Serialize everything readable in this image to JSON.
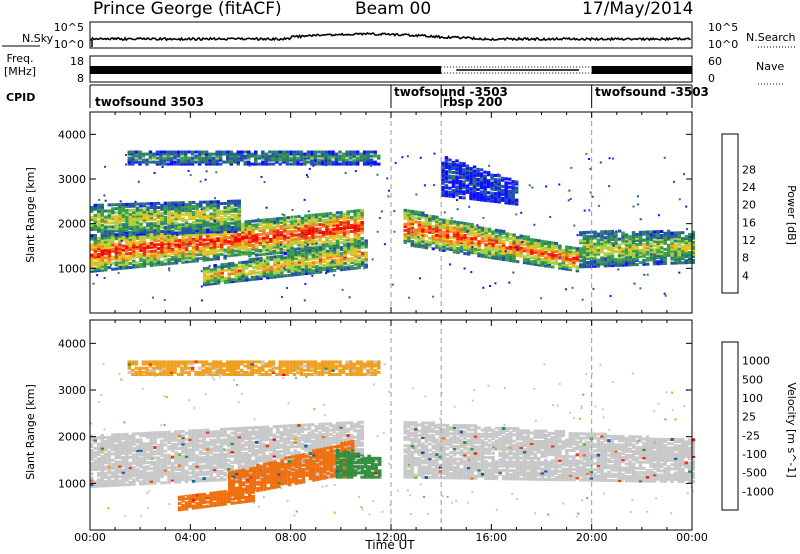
{
  "header": {
    "station": "Prince George (fitACF)",
    "beam": "Beam 00",
    "date": "17/May/2014"
  },
  "left_labels": {
    "nsky": "N.Sky",
    "freq_line1": "Freq.",
    "freq_line2": "[MHz]",
    "cpid": "CPID"
  },
  "right_labels": {
    "nsearch": "N.Search",
    "nave": "Nave"
  },
  "noise_panel": {
    "left_ticks": [
      "10^5",
      "10^0"
    ],
    "right_ticks": [
      "10^5",
      "10^0"
    ]
  },
  "freq_panel": {
    "left_ticks": [
      "18",
      "8"
    ],
    "right_ticks": [
      "60",
      "0"
    ]
  },
  "cpid_segments": [
    {
      "label": "twofsound 3503",
      "start": "00:00"
    },
    {
      "label": "twofsound -3503",
      "start": "12:00"
    },
    {
      "label": "rbsp 200",
      "start": "14:00"
    },
    {
      "label": "twofsound -3503",
      "start": "20:00"
    }
  ],
  "xaxis": {
    "label": "Time UT",
    "ticks": [
      "00:00",
      "04:00",
      "08:00",
      "12:00",
      "16:00",
      "20:00",
      "00:00"
    ]
  },
  "colors": {
    "power_scale": [
      "#1010ff",
      "#2050b0",
      "#2f7a68",
      "#3aa04a",
      "#a8d040",
      "#f0c020",
      "#f08020",
      "#e83010",
      "#ff0000"
    ],
    "velocity_scale": [
      "#ff0000",
      "#e84010",
      "#f07010",
      "#f0a020",
      "#c8c8c8",
      "#60c040",
      "#309040",
      "#2060a0",
      "#1030c0"
    ]
  },
  "chart_data": [
    {
      "type": "heatmap",
      "name": "power",
      "ylabel": "Slant Range [km]",
      "ylim": [
        0,
        4500
      ],
      "yticks": [
        "1000",
        "2000",
        "3000",
        "4000"
      ],
      "xlim_hours": [
        0,
        24
      ],
      "colorbar": {
        "label": "Power [dB]",
        "ticks": [
          "4",
          "8",
          "12",
          "16",
          "20",
          "24",
          "28"
        ],
        "range": [
          0,
          32
        ]
      },
      "bands": [
        {
          "t0": 0.0,
          "t1": 10.8,
          "r0": 900,
          "r1": 1700,
          "r2": 1500,
          "r3": 2300,
          "level": 0.9
        },
        {
          "t0": 0.0,
          "t1": 6.0,
          "r0": 1700,
          "r1": 2400,
          "r2": 1800,
          "r3": 2500,
          "level": 0.55
        },
        {
          "t0": 4.5,
          "t1": 11.0,
          "r0": 600,
          "r1": 1000,
          "r2": 1000,
          "r3": 1600,
          "level": 0.7
        },
        {
          "t0": 1.5,
          "t1": 11.5,
          "r0": 3300,
          "r1": 3600,
          "r2": 3300,
          "r3": 3600,
          "level": 0.35
        },
        {
          "t0": 12.5,
          "t1": 19.5,
          "r0": 1500,
          "r1": 2300,
          "r2": 900,
          "r3": 1400,
          "level": 0.85
        },
        {
          "t0": 19.5,
          "t1": 24.0,
          "r0": 1000,
          "r1": 1800,
          "r2": 1100,
          "r3": 1800,
          "level": 0.55
        },
        {
          "t0": 14.0,
          "t1": 17.0,
          "r0": 2600,
          "r1": 3500,
          "r2": 2400,
          "r3": 2900,
          "level": 0.15
        }
      ]
    },
    {
      "type": "heatmap",
      "name": "velocity",
      "ylabel": "Slant Range [km]",
      "ylim": [
        0,
        4500
      ],
      "yticks": [
        "1000",
        "2000",
        "3000",
        "4000"
      ],
      "xlim_hours": [
        0,
        24
      ],
      "colorbar": {
        "label": "Velocity [m s^-1]",
        "ticks": [
          "-1000",
          "-500",
          "-100",
          "-25",
          "25",
          "100",
          "500",
          "1000"
        ]
      },
      "bands": [
        {
          "t0": 0.0,
          "t1": 10.8,
          "r0": 900,
          "r1": 2000,
          "r2": 1200,
          "r3": 2300,
          "v": 0.0
        },
        {
          "t0": 5.5,
          "t1": 10.5,
          "r0": 700,
          "r1": 1200,
          "r2": 1200,
          "r3": 1900,
          "v": -300
        },
        {
          "t0": 3.5,
          "t1": 6.5,
          "r0": 400,
          "r1": 700,
          "r2": 600,
          "r3": 900,
          "v": -250
        },
        {
          "t0": 9.8,
          "t1": 11.6,
          "r0": 1100,
          "r1": 1700,
          "r2": 1100,
          "r3": 1500,
          "v": 200
        },
        {
          "t0": 1.5,
          "t1": 11.5,
          "r0": 3300,
          "r1": 3600,
          "r2": 3300,
          "r3": 3600,
          "v": -40
        },
        {
          "t0": 12.5,
          "t1": 24.0,
          "r0": 1100,
          "r1": 2300,
          "r2": 1000,
          "r3": 1900,
          "v": 0.0
        }
      ]
    }
  ]
}
